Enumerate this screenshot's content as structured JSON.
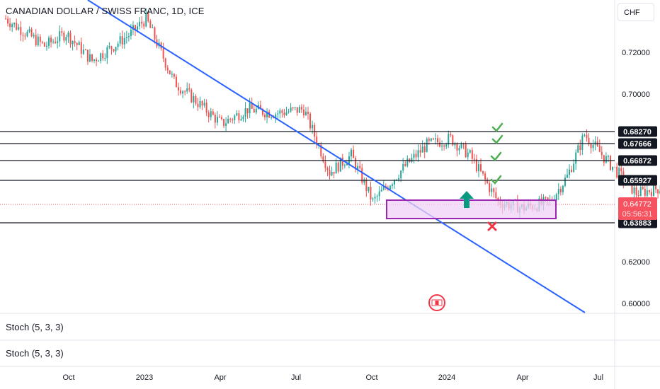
{
  "header": {
    "title": "CANADIAN DOLLAR / SWISS FRANC, 1D, ICE",
    "currency": "CHF"
  },
  "price_axis": {
    "ticks": [
      "0.72000",
      "0.70000",
      "0.62000",
      "0.60000"
    ]
  },
  "time_axis": {
    "labels": [
      "Oct",
      "2023",
      "Apr",
      "Jul",
      "Oct",
      "2024",
      "Apr",
      "Jul"
    ]
  },
  "levels": [
    "0.68270",
    "0.67666",
    "0.66872",
    "0.65927",
    "0.63883"
  ],
  "current_price": {
    "price": "0.64772",
    "countdown": "05:56:31"
  },
  "indicators": [
    "Stoch (5, 3, 3)",
    "Stoch (5, 3, 3)"
  ],
  "colors": {
    "trendline": "#2962ff",
    "box_border": "#9c27b0",
    "box_fill": "#f0d2f5",
    "up": "#26a69a",
    "down": "#ef5350",
    "check": "#4caf50",
    "cross": "#f23645",
    "arrow": "#089981",
    "current": "#f7525f"
  },
  "icons": {
    "up_arrow": "arrow-up-icon",
    "check": "check-icon",
    "cross": "cross-icon",
    "event": "canada-flag-icon"
  },
  "chart_data": {
    "type": "candlestick",
    "y_range": [
      0.595,
      0.745
    ],
    "series_path": [
      [
        0.735,
        0
      ],
      [
        0.722,
        18
      ],
      [
        0.728,
        28
      ],
      [
        0.715,
        40
      ],
      [
        0.722,
        50
      ],
      [
        0.728,
        58
      ],
      [
        0.735,
        65
      ],
      [
        0.705,
        78
      ],
      [
        0.685,
        100
      ],
      [
        0.692,
        112
      ],
      [
        0.69,
        125
      ],
      [
        0.692,
        138
      ],
      [
        0.662,
        150
      ],
      [
        0.67,
        160
      ],
      [
        0.648,
        170
      ],
      [
        0.665,
        185
      ],
      [
        0.675,
        195
      ],
      [
        0.678,
        206
      ],
      [
        0.67,
        215
      ],
      [
        0.648,
        228
      ],
      [
        0.645,
        240
      ],
      [
        0.648,
        252
      ],
      [
        0.66,
        260
      ],
      [
        0.68,
        268
      ],
      [
        0.668,
        278
      ],
      [
        0.652,
        292
      ],
      [
        0.655,
        305
      ],
      [
        0.648,
        318
      ],
      [
        0.644,
        328
      ],
      [
        0.647,
        345
      ]
    ]
  }
}
